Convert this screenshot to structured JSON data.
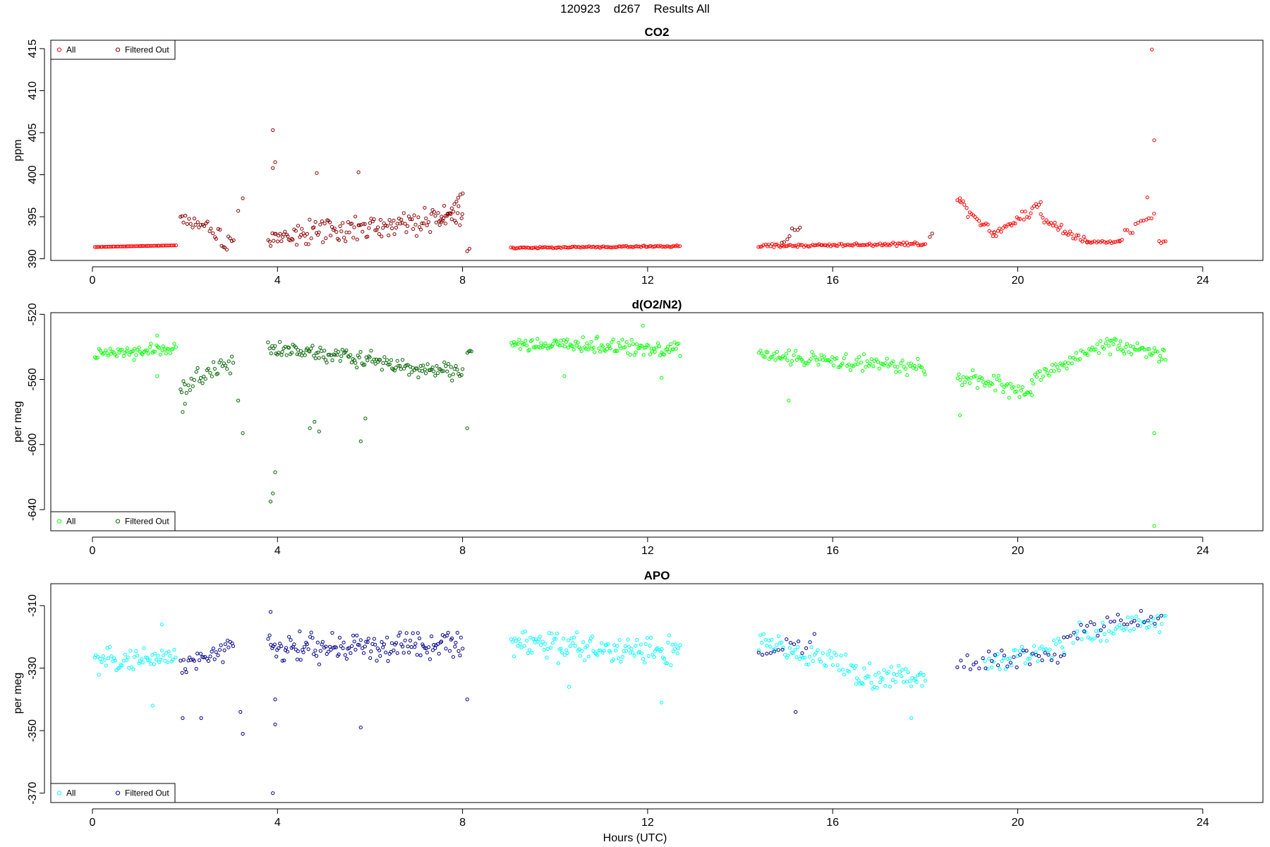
{
  "figure_title": "120923    d267    Results All",
  "x_axis_label": "Hours (UTC)",
  "chart_data": [
    {
      "type": "scatter",
      "id": "co2",
      "title": "CO2",
      "ylabel": "ppm",
      "xlim": [
        -0.9,
        25.3
      ],
      "ylim": [
        389.8,
        416.0
      ],
      "xticks": [
        0,
        4,
        8,
        12,
        16,
        20,
        24
      ],
      "yticks": [
        390,
        395,
        400,
        405,
        410,
        415
      ],
      "ytick_labels": [
        "390",
        "395",
        "400",
        "405",
        "410",
        "415"
      ],
      "legend": {
        "position": "top-left",
        "entries": [
          "All",
          "Filtered Out"
        ]
      },
      "colors": {
        "all": "#ff0000",
        "filtered": "#8b0000"
      },
      "series": [
        {
          "name": "All",
          "segments": [
            [
              0.05,
              1.8,
              391.4,
              391.6,
              0.0,
              55
            ],
            [
              9.05,
              12.7,
              391.3,
              391.5,
              0.15,
              105
            ],
            [
              14.4,
              18.0,
              391.5,
              391.8,
              0.3,
              100
            ],
            [
              18.7,
              19.5,
              397.0,
              393.0,
              1.0,
              22
            ],
            [
              19.5,
              20.5,
              393.0,
              396.5,
              1.0,
              28
            ],
            [
              20.5,
              21.5,
              395.0,
              392.0,
              0.9,
              28
            ],
            [
              21.5,
              22.2,
              392.0,
              392.0,
              0.3,
              18
            ],
            [
              22.2,
              22.95,
              392.5,
              395.0,
              1.2,
              14
            ],
            [
              23.05,
              23.2,
              392.0,
              392.0,
              0.2,
              4
            ]
          ],
          "points": [
            [
              22.9,
              414.9
            ],
            [
              22.95,
              404.1
            ],
            [
              18.75,
              397.2
            ],
            [
              22.8,
              397.3
            ]
          ]
        },
        {
          "name": "Filtered Out",
          "segments": [
            [
              1.9,
              3.05,
              395.0,
              392.0,
              1.6,
              32
            ],
            [
              3.8,
              8.0,
              392.5,
              395.0,
              2.2,
              150
            ],
            [
              7.5,
              8.0,
              394.0,
              398.0,
              0.6,
              12
            ],
            [
              14.9,
              15.3,
              392.0,
              394.0,
              1.0,
              8
            ]
          ],
          "points": [
            [
              3.15,
              395.7
            ],
            [
              3.25,
              397.2
            ],
            [
              3.9,
              405.3
            ],
            [
              3.9,
              400.8
            ],
            [
              3.95,
              401.5
            ],
            [
              4.85,
              400.2
            ],
            [
              5.75,
              400.3
            ],
            [
              8.1,
              390.9
            ],
            [
              8.15,
              391.2
            ],
            [
              18.1,
              392.6
            ],
            [
              18.15,
              393.0
            ]
          ]
        }
      ]
    },
    {
      "type": "scatter",
      "id": "do2n2",
      "title": "d(O2/N2)",
      "ylabel": "per meg",
      "xlim": [
        -0.9,
        25.3
      ],
      "ylim": [
        -653.0,
        -519.0
      ],
      "xticks": [
        0,
        4,
        8,
        12,
        16,
        20,
        24
      ],
      "yticks": [
        -640,
        -600,
        -560,
        -520
      ],
      "ytick_labels": [
        "-640",
        "-600",
        "-560",
        "-520"
      ],
      "legend": {
        "position": "bottom-left",
        "entries": [
          "All",
          "Filtered Out"
        ]
      },
      "colors": {
        "all": "#00ff00",
        "filtered": "#006400"
      },
      "series": [
        {
          "name": "All",
          "segments": [
            [
              0.05,
              1.8,
              -545.0,
              -541.0,
              5.0,
              60
            ],
            [
              9.05,
              12.7,
              -538.0,
              -541.0,
              7.0,
              130
            ],
            [
              14.4,
              18.0,
              -545.0,
              -553.0,
              6.0,
              110
            ],
            [
              18.7,
              20.3,
              -558.0,
              -568.0,
              7.0,
              50
            ],
            [
              20.3,
              22.0,
              -560.0,
              -537.0,
              6.0,
              50
            ],
            [
              22.0,
              23.2,
              -537.0,
              -545.0,
              8.0,
              40
            ]
          ],
          "points": [
            [
              0.9,
              -548.0
            ],
            [
              1.4,
              -533.0
            ],
            [
              1.4,
              -558.0
            ],
            [
              10.2,
              -558.0
            ],
            [
              11.9,
              -527.0
            ],
            [
              12.3,
              -559.0
            ],
            [
              15.05,
              -573.0
            ],
            [
              18.75,
              -582.0
            ],
            [
              22.95,
              -593.0
            ],
            [
              22.95,
              -650.0
            ]
          ]
        },
        {
          "name": "Filtered Out",
          "segments": [
            [
              1.9,
              3.05,
              -565.0,
              -548.0,
              8.0,
              35
            ],
            [
              3.8,
              8.0,
              -540.0,
              -556.0,
              8.0,
              150
            ],
            [
              8.1,
              8.2,
              -543.0,
              -543.0,
              2.0,
              4
            ]
          ],
          "points": [
            [
              1.95,
              -580.0
            ],
            [
              2.0,
              -575.0
            ],
            [
              3.15,
              -573.0
            ],
            [
              3.25,
              -593.0
            ],
            [
              3.95,
              -617.0
            ],
            [
              3.9,
              -630.0
            ],
            [
              3.85,
              -635.0
            ],
            [
              4.7,
              -590.0
            ],
            [
              4.8,
              -586.0
            ],
            [
              4.9,
              -592.0
            ],
            [
              5.8,
              -598.0
            ],
            [
              5.9,
              -584.0
            ],
            [
              8.1,
              -590.0
            ]
          ]
        }
      ]
    },
    {
      "type": "scatter",
      "id": "apo",
      "title": "APO",
      "ylabel": "per meg",
      "xlim": [
        -0.9,
        25.3
      ],
      "ylim": [
        -373.0,
        -303.0
      ],
      "xticks": [
        0,
        4,
        8,
        12,
        16,
        20,
        24
      ],
      "yticks": [
        -370,
        -350,
        -330,
        -310
      ],
      "ytick_labels": [
        "-370",
        "-350",
        "-330",
        "-310"
      ],
      "legend": {
        "position": "bottom-left",
        "entries": [
          "All",
          "Filtered Out"
        ]
      },
      "colors": {
        "all": "#00ffff",
        "filtered": "#00008b"
      },
      "series": [
        {
          "name": "All",
          "segments": [
            [
              0.05,
              1.8,
              -328.0,
              -326.0,
              5.0,
              60
            ],
            [
              9.05,
              12.7,
              -322.0,
              -325.0,
              7.0,
              130
            ],
            [
              14.4,
              16.5,
              -322.0,
              -330.0,
              6.0,
              60
            ],
            [
              16.5,
              18.0,
              -333.0,
              -333.0,
              7.0,
              50
            ],
            [
              19.3,
              21.0,
              -328.0,
              -323.0,
              5.0,
              40
            ],
            [
              21.2,
              23.2,
              -320.0,
              -314.0,
              5.0,
              45
            ]
          ],
          "points": [
            [
              1.3,
              -342.0
            ],
            [
              1.5,
              -316.0
            ],
            [
              12.3,
              -341.0
            ],
            [
              17.7,
              -346.0
            ],
            [
              10.3,
              -336.0
            ]
          ]
        },
        {
          "name": "Filtered Out",
          "segments": [
            [
              1.9,
              3.05,
              -330.0,
              -323.0,
              6.0,
              35
            ],
            [
              3.8,
              8.0,
              -324.0,
              -322.0,
              7.0,
              150
            ],
            [
              14.4,
              15.6,
              -325.0,
              -322.0,
              6.0,
              15
            ],
            [
              18.7,
              21.0,
              -328.0,
              -326.0,
              5.0,
              35
            ],
            [
              21.0,
              23.1,
              -318.0,
              -314.0,
              5.0,
              30
            ]
          ],
          "points": [
            [
              1.95,
              -346.0
            ],
            [
              2.35,
              -346.0
            ],
            [
              3.2,
              -344.0
            ],
            [
              3.25,
              -351.0
            ],
            [
              3.9,
              -370.0
            ],
            [
              3.95,
              -348.0
            ],
            [
              3.95,
              -340.0
            ],
            [
              3.85,
              -312.0
            ],
            [
              5.8,
              -349.0
            ],
            [
              8.1,
              -340.0
            ],
            [
              15.2,
              -344.0
            ]
          ]
        }
      ]
    }
  ]
}
